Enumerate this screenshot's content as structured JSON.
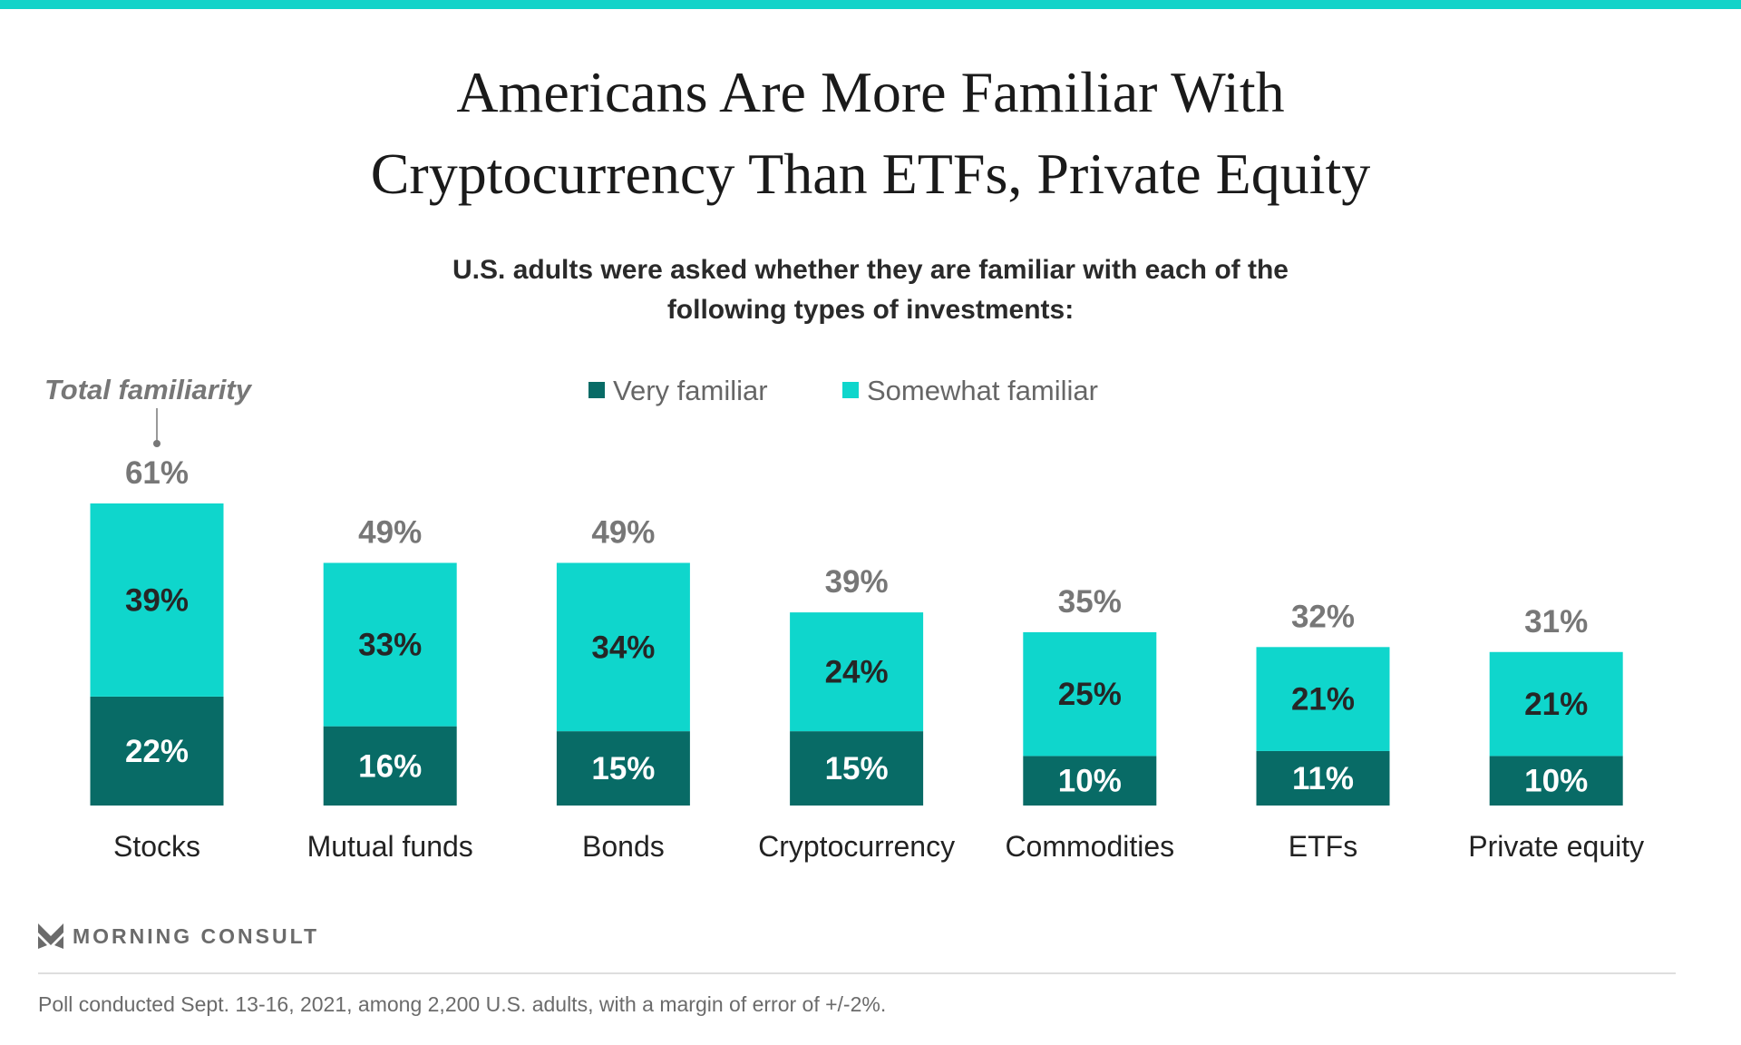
{
  "colors": {
    "very": "#086b66",
    "somewhat": "#0fd6cc",
    "topbar": "#12d3c9",
    "total": "#777777"
  },
  "title_lines": [
    "Americans Are More Familiar With",
    "Cryptocurrency Than ETFs, Private Equity"
  ],
  "subtitle_lines": [
    "U.S. adults were asked whether they are familiar with each of the",
    "following types of investments:"
  ],
  "chart_data": {
    "type": "bar",
    "stacked": true,
    "categories": [
      "Stocks",
      "Mutual funds",
      "Bonds",
      "Cryptocurrency",
      "Commodities",
      "ETFs",
      "Private equity"
    ],
    "series": [
      {
        "name": "Very familiar",
        "values": [
          22,
          16,
          15,
          15,
          10,
          11,
          10
        ]
      },
      {
        "name": "Somewhat familiar",
        "values": [
          39,
          33,
          34,
          24,
          25,
          21,
          21
        ]
      }
    ],
    "totals": [
      61,
      49,
      49,
      39,
      35,
      32,
      31
    ],
    "total_annotation": "Total familiarity",
    "legend_placement": "top-center",
    "ylim": [
      0,
      61
    ],
    "grid": false
  },
  "footer": {
    "brand": "MORNING CONSULT",
    "note": "Poll conducted Sept. 13-16, 2021, among 2,200 U.S. adults, with a margin of error of +/-2%."
  }
}
